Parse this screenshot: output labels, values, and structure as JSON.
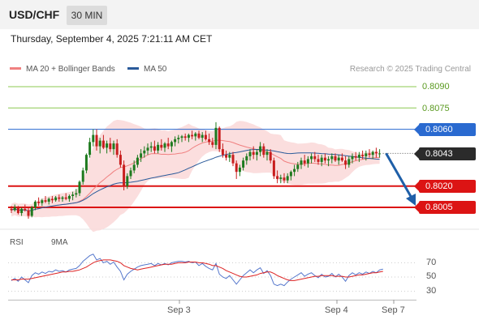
{
  "header": {
    "symbol": "USD/CHF",
    "timeframe": "30 MIN"
  },
  "datetime": "Thursday, September 4, 2025 7:21:11 AM CET",
  "legend": {
    "ma20": {
      "label": "MA 20 + Bollinger Bands",
      "color": "#f08080"
    },
    "ma50": {
      "label": "MA 50",
      "color": "#2a5a9a"
    }
  },
  "credit": "Research © 2025 Trading Central",
  "colors": {
    "bull": "#1e7a1e",
    "bear": "#c81e1e",
    "band": "#fbdada",
    "green_level": "#8cc850",
    "blue_level": "#2a6ad0",
    "red_level": "#dc1414",
    "projection": "#1f5fa8"
  },
  "chart_data": [
    {
      "type": "candlestick",
      "ylim": [
        0.79935,
        0.8098
      ],
      "x_ticks": [
        "Sep 3",
        "Sep 4",
        "Sep 7"
      ],
      "levels": [
        {
          "value": 0.809,
          "label": "0.8090",
          "kind": "resistance-far",
          "style": "green-line"
        },
        {
          "value": 0.8075,
          "label": "0.8075",
          "kind": "resistance",
          "style": "green-line"
        },
        {
          "value": 0.806,
          "label": "0.8060",
          "kind": "pivot",
          "style": "blue-tag"
        },
        {
          "value": 0.8043,
          "label": "0.8043",
          "kind": "last-price",
          "style": "dark-tag"
        },
        {
          "value": 0.802,
          "label": "0.8020",
          "kind": "support",
          "style": "red-tag"
        },
        {
          "value": 0.8005,
          "label": "0.8005",
          "kind": "support-target",
          "style": "red-tag"
        }
      ],
      "projection": {
        "from": 0.8043,
        "to": 0.8005
      },
      "candles": [
        [
          0.8004,
          0.8006,
          0.8001,
          0.8003
        ],
        [
          0.8003,
          0.8007,
          0.8002,
          0.8005
        ],
        [
          0.8005,
          0.8006,
          0.8,
          0.8001
        ],
        [
          0.8001,
          0.8005,
          0.7999,
          0.8004
        ],
        [
          0.8004,
          0.8007,
          0.8002,
          0.8003
        ],
        [
          0.8003,
          0.8005,
          0.7997,
          0.7999
        ],
        [
          0.7999,
          0.8006,
          0.7998,
          0.8005
        ],
        [
          0.8005,
          0.801,
          0.8003,
          0.8009
        ],
        [
          0.8009,
          0.8012,
          0.8006,
          0.8008
        ],
        [
          0.8008,
          0.8011,
          0.8006,
          0.801
        ],
        [
          0.801,
          0.8013,
          0.8008,
          0.8009
        ],
        [
          0.8009,
          0.8012,
          0.8007,
          0.8011
        ],
        [
          0.8011,
          0.8013,
          0.8008,
          0.801
        ],
        [
          0.801,
          0.8013,
          0.8009,
          0.8012
        ],
        [
          0.8012,
          0.8014,
          0.8009,
          0.8011
        ],
        [
          0.8011,
          0.8013,
          0.8009,
          0.8012
        ],
        [
          0.8012,
          0.8015,
          0.801,
          0.8011
        ],
        [
          0.8011,
          0.8014,
          0.8009,
          0.8013
        ],
        [
          0.8013,
          0.8016,
          0.801,
          0.8014
        ],
        [
          0.8014,
          0.8018,
          0.8012,
          0.8015
        ],
        [
          0.8015,
          0.8024,
          0.8013,
          0.8023
        ],
        [
          0.8023,
          0.8033,
          0.8021,
          0.8031
        ],
        [
          0.8031,
          0.8043,
          0.8029,
          0.8042
        ],
        [
          0.8042,
          0.8054,
          0.804,
          0.8051
        ],
        [
          0.8051,
          0.806,
          0.8048,
          0.8056
        ],
        [
          0.8056,
          0.806,
          0.8045,
          0.8048
        ],
        [
          0.8048,
          0.8054,
          0.8043,
          0.8052
        ],
        [
          0.8052,
          0.8056,
          0.8046,
          0.8047
        ],
        [
          0.8047,
          0.8052,
          0.8043,
          0.805
        ],
        [
          0.805,
          0.8054,
          0.8044,
          0.8046
        ],
        [
          0.8046,
          0.8052,
          0.8042,
          0.805
        ],
        [
          0.805,
          0.8053,
          0.804,
          0.8042
        ],
        [
          0.8042,
          0.8045,
          0.8033,
          0.8035
        ],
        [
          0.8035,
          0.8038,
          0.8017,
          0.802
        ],
        [
          0.802,
          0.8029,
          0.8018,
          0.8027
        ],
        [
          0.8027,
          0.8033,
          0.8025,
          0.8031
        ],
        [
          0.8031,
          0.8038,
          0.8029,
          0.8035
        ],
        [
          0.8035,
          0.8042,
          0.8033,
          0.804
        ],
        [
          0.804,
          0.8046,
          0.8037,
          0.8043
        ],
        [
          0.8043,
          0.8048,
          0.804,
          0.8045
        ],
        [
          0.8045,
          0.805,
          0.8042,
          0.8047
        ],
        [
          0.8047,
          0.8051,
          0.8044,
          0.8048
        ],
        [
          0.8048,
          0.8052,
          0.8043,
          0.8045
        ],
        [
          0.8045,
          0.8051,
          0.8043,
          0.8049
        ],
        [
          0.8049,
          0.8053,
          0.8045,
          0.8047
        ],
        [
          0.8047,
          0.8051,
          0.8044,
          0.805
        ],
        [
          0.805,
          0.8054,
          0.8046,
          0.8048
        ],
        [
          0.8048,
          0.8052,
          0.8044,
          0.8051
        ],
        [
          0.8051,
          0.8055,
          0.8048,
          0.8053
        ],
        [
          0.8053,
          0.8056,
          0.805,
          0.8054
        ],
        [
          0.8054,
          0.8056,
          0.8051,
          0.8055
        ],
        [
          0.8055,
          0.8057,
          0.8052,
          0.8054
        ],
        [
          0.8054,
          0.8057,
          0.8051,
          0.8056
        ],
        [
          0.8056,
          0.8059,
          0.8053,
          0.8055
        ],
        [
          0.8055,
          0.8058,
          0.8052,
          0.8057
        ],
        [
          0.8057,
          0.8059,
          0.8053,
          0.8054
        ],
        [
          0.8054,
          0.8058,
          0.8051,
          0.8056
        ],
        [
          0.8056,
          0.8059,
          0.8052,
          0.8053
        ],
        [
          0.8053,
          0.8057,
          0.8049,
          0.8051
        ],
        [
          0.8051,
          0.8054,
          0.8047,
          0.8049
        ],
        [
          0.8049,
          0.8065,
          0.8046,
          0.8061
        ],
        [
          0.8061,
          0.8062,
          0.8044,
          0.8046
        ],
        [
          0.8046,
          0.805,
          0.804,
          0.8042
        ],
        [
          0.8042,
          0.8045,
          0.8038,
          0.804
        ],
        [
          0.804,
          0.8044,
          0.8037,
          0.8042
        ],
        [
          0.8042,
          0.8044,
          0.8034,
          0.8036
        ],
        [
          0.8036,
          0.8038,
          0.8025,
          0.803
        ],
        [
          0.803,
          0.8035,
          0.8027,
          0.8033
        ],
        [
          0.8033,
          0.804,
          0.8031,
          0.8038
        ],
        [
          0.8038,
          0.8043,
          0.8035,
          0.8041
        ],
        [
          0.8041,
          0.8046,
          0.8038,
          0.8044
        ],
        [
          0.8044,
          0.8048,
          0.8039,
          0.8042
        ],
        [
          0.8042,
          0.8046,
          0.8038,
          0.8044
        ],
        [
          0.8044,
          0.8051,
          0.8041,
          0.8048
        ],
        [
          0.8048,
          0.805,
          0.804,
          0.8042
        ],
        [
          0.8042,
          0.8046,
          0.8038,
          0.8044
        ],
        [
          0.8044,
          0.8046,
          0.8036,
          0.8038
        ],
        [
          0.8038,
          0.804,
          0.8025,
          0.8027
        ],
        [
          0.8027,
          0.8031,
          0.8022,
          0.8025
        ],
        [
          0.8025,
          0.8028,
          0.8022,
          0.8026
        ],
        [
          0.8026,
          0.8029,
          0.8022,
          0.8024
        ],
        [
          0.8024,
          0.8029,
          0.8022,
          0.8027
        ],
        [
          0.8027,
          0.8031,
          0.8024,
          0.803
        ],
        [
          0.803,
          0.8035,
          0.8027,
          0.8032
        ],
        [
          0.8032,
          0.8037,
          0.803,
          0.8035
        ],
        [
          0.8035,
          0.804,
          0.8032,
          0.8038
        ],
        [
          0.8038,
          0.8042,
          0.8034,
          0.8036
        ],
        [
          0.8036,
          0.8041,
          0.8033,
          0.8039
        ],
        [
          0.8039,
          0.8043,
          0.8036,
          0.8041
        ],
        [
          0.8041,
          0.8044,
          0.8037,
          0.8039
        ],
        [
          0.8039,
          0.8042,
          0.8035,
          0.8037
        ],
        [
          0.8037,
          0.8042,
          0.8034,
          0.804
        ],
        [
          0.804,
          0.8043,
          0.8036,
          0.8038
        ],
        [
          0.8038,
          0.8041,
          0.8034,
          0.8039
        ],
        [
          0.8039,
          0.8043,
          0.8036,
          0.8041
        ],
        [
          0.8041,
          0.8043,
          0.8037,
          0.8038
        ],
        [
          0.8038,
          0.8042,
          0.8035,
          0.804
        ],
        [
          0.804,
          0.8043,
          0.8037,
          0.8038
        ],
        [
          0.8038,
          0.8041,
          0.8032,
          0.8035
        ],
        [
          0.8035,
          0.8041,
          0.8033,
          0.8039
        ],
        [
          0.8039,
          0.8043,
          0.8036,
          0.8041
        ],
        [
          0.8041,
          0.8044,
          0.8038,
          0.804
        ],
        [
          0.804,
          0.8044,
          0.8037,
          0.8042
        ],
        [
          0.8042,
          0.8045,
          0.8039,
          0.8041
        ],
        [
          0.8041,
          0.8045,
          0.8038,
          0.8043
        ],
        [
          0.8043,
          0.8046,
          0.804,
          0.8042
        ],
        [
          0.8042,
          0.8045,
          0.8039,
          0.8044
        ],
        [
          0.8044,
          0.8047,
          0.804,
          0.8043
        ],
        [
          0.8043,
          0.8046,
          0.804,
          0.8043
        ]
      ]
    },
    {
      "type": "line",
      "ylim": [
        20,
        85
      ],
      "y_ticks": [
        70,
        50,
        30
      ],
      "series": [
        {
          "name": "RSI",
          "color": "#5577cc",
          "values": [
            45,
            48,
            44,
            50,
            46,
            42,
            52,
            56,
            54,
            57,
            55,
            58,
            57,
            60,
            58,
            59,
            57,
            60,
            61,
            62,
            66,
            72,
            76,
            80,
            82,
            74,
            76,
            70,
            72,
            68,
            71,
            64,
            58,
            46,
            54,
            58,
            61,
            64,
            66,
            67,
            68,
            69,
            66,
            69,
            67,
            69,
            67,
            70,
            71,
            72,
            72,
            71,
            72,
            70,
            71,
            66,
            69,
            65,
            62,
            60,
            69,
            54,
            50,
            48,
            52,
            46,
            40,
            46,
            52,
            56,
            60,
            56,
            60,
            63,
            55,
            59,
            52,
            40,
            38,
            40,
            38,
            43,
            47,
            50,
            53,
            56,
            51,
            54,
            56,
            52,
            49,
            54,
            50,
            51,
            55,
            50,
            54,
            50,
            44,
            52,
            56,
            53,
            56,
            54,
            57,
            55,
            58,
            56,
            60,
            61
          ]
        },
        {
          "name": "9MA",
          "color": "#dd2222",
          "values": [
            46,
            46,
            46,
            47,
            47,
            47,
            48,
            49,
            50,
            51,
            52,
            53,
            54,
            55,
            56,
            57,
            57,
            58,
            58,
            59,
            60,
            62,
            64,
            67,
            70,
            72,
            73,
            74,
            74,
            74,
            73,
            72,
            70,
            66,
            64,
            62,
            61,
            60,
            61,
            62,
            63,
            64,
            65,
            66,
            67,
            68,
            68,
            68,
            69,
            70,
            70,
            70,
            71,
            71,
            71,
            70,
            70,
            69,
            68,
            66,
            66,
            64,
            62,
            59,
            57,
            55,
            53,
            51,
            50,
            50,
            51,
            52,
            53,
            55,
            56,
            57,
            57,
            55,
            52,
            50,
            48,
            46,
            45,
            45,
            46,
            47,
            48,
            49,
            50,
            51,
            51,
            52,
            52,
            52,
            52,
            51,
            51,
            51,
            50,
            50,
            51,
            52,
            53,
            53,
            54,
            55,
            56,
            56,
            57,
            58
          ]
        }
      ]
    }
  ]
}
